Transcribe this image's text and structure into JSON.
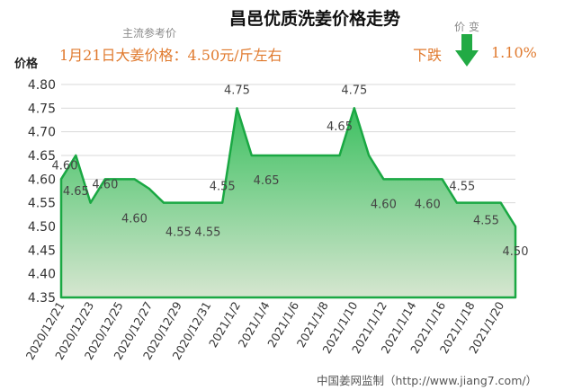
{
  "header": {
    "title": "昌邑优质洗姜价格走势",
    "ref_label": "主流参考价",
    "ref_price": "1月21日大姜价格：4.50元/斤左右",
    "change_label": "价变",
    "trend": "下跌",
    "change_pct": "1.10%",
    "arrow_icon": "down-arrow-icon",
    "arrow_color": "#22aa44"
  },
  "footer": {
    "source": "中国姜网监制（http://www.jiang7.com/）"
  },
  "chart_data": {
    "type": "area",
    "title": "昌邑优质洗姜价格走势",
    "xlabel": "",
    "ylabel": "价格",
    "ylim": [
      4.35,
      4.8
    ],
    "yticks": [
      "4.35",
      "4.40",
      "4.45",
      "4.50",
      "4.55",
      "4.60",
      "4.65",
      "4.70",
      "4.75",
      "4.80"
    ],
    "grid": true,
    "x": [
      "2020/12/21",
      "2020/12/22",
      "2020/12/23",
      "2020/12/24",
      "2020/12/25",
      "2020/12/26",
      "2020/12/27",
      "2020/12/28",
      "2020/12/29",
      "2020/12/30",
      "2020/12/31",
      "2021/1/1",
      "2021/1/2",
      "2021/1/3",
      "2021/1/4",
      "2021/1/5",
      "2021/1/6",
      "2021/1/7",
      "2021/1/8",
      "2021/1/9",
      "2021/1/10",
      "2021/1/11",
      "2021/1/12",
      "2021/1/13",
      "2021/1/14",
      "2021/1/15",
      "2021/1/16",
      "2021/1/17",
      "2021/1/18",
      "2021/1/19",
      "2021/1/20",
      "2021/1/21"
    ],
    "xticks": [
      "2020/12/21",
      "2020/12/23",
      "2020/12/25",
      "2020/12/27",
      "2020/12/29",
      "2020/12/31",
      "2021/1/2",
      "2021/1/4",
      "2021/1/6",
      "2021/1/8",
      "2021/1/10",
      "2021/1/12",
      "2021/1/14",
      "2021/1/16",
      "2021/1/18",
      "2021/1/20"
    ],
    "values": [
      4.6,
      4.65,
      4.55,
      4.6,
      4.6,
      4.6,
      4.58,
      4.55,
      4.55,
      4.55,
      4.55,
      4.55,
      4.75,
      4.65,
      4.65,
      4.65,
      4.65,
      4.65,
      4.65,
      4.65,
      4.75,
      4.65,
      4.6,
      4.6,
      4.6,
      4.6,
      4.6,
      4.55,
      4.55,
      4.55,
      4.55,
      4.5
    ],
    "annotations": [
      {
        "i": 0,
        "text": "4.60"
      },
      {
        "i": 1,
        "text": "4.65"
      },
      {
        "i": 3,
        "text": "4.60"
      },
      {
        "i": 5,
        "text": "4.60"
      },
      {
        "i": 8,
        "text": "4.55"
      },
      {
        "i": 10,
        "text": "4.55"
      },
      {
        "i": 11,
        "text": "4.55"
      },
      {
        "i": 12,
        "text": "4.75"
      },
      {
        "i": 14,
        "text": "4.65"
      },
      {
        "i": 19,
        "text": "4.65"
      },
      {
        "i": 20,
        "text": "4.75"
      },
      {
        "i": 22,
        "text": "4.60"
      },
      {
        "i": 25,
        "text": "4.60"
      },
      {
        "i": 27,
        "text": "4.55"
      },
      {
        "i": 29,
        "text": "4.55"
      },
      {
        "i": 31,
        "text": "4.50"
      }
    ],
    "line_color": "#1aa843",
    "fill_top_color": "#3cc060",
    "fill_bottom_color": "#d6e6d0"
  }
}
